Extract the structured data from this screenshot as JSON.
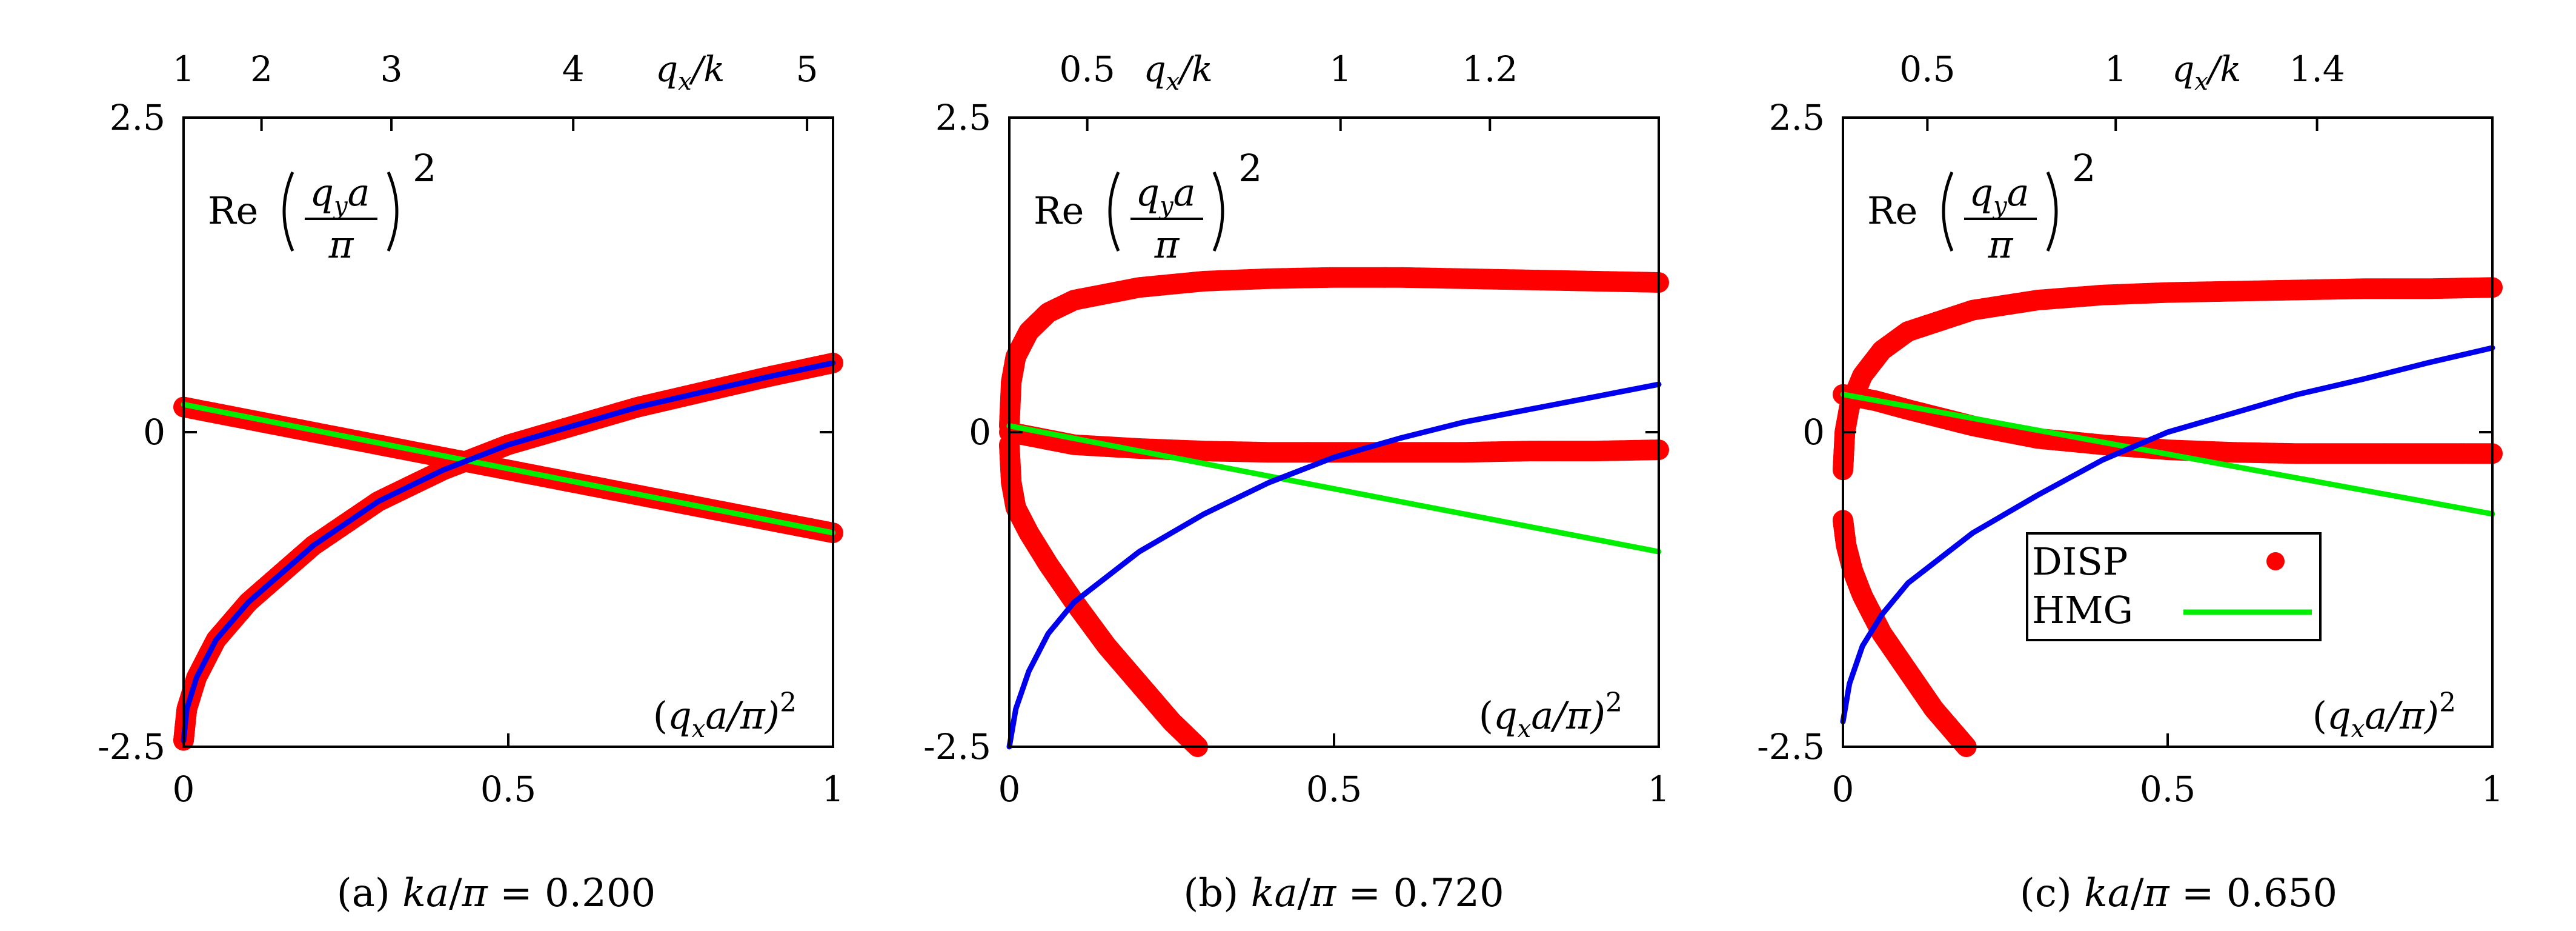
{
  "figure": {
    "colors": {
      "disp": "#ff0000",
      "hmg": "#00ee00",
      "blue": "#0000ee",
      "frame": "#000000"
    },
    "panels": [
      {
        "id": "a",
        "caption": {
          "prefix": "(a) ",
          "ka": "ka",
          "div": "/",
          "pi": "π",
          "eq": " = ",
          "value": "0.200"
        },
        "ylabel": {
          "re": "Re",
          "qy": "q",
          "sub": "y",
          "a": "a",
          "pi": "π",
          "exp": "2"
        },
        "xlabel": {
          "open": "(",
          "qx": "q",
          "sub": "x",
          "rest": "a/π)",
          "exp": "2"
        },
        "toplabel": {
          "q": "q",
          "sub": "x",
          "rest": "/k"
        }
      },
      {
        "id": "b",
        "caption": {
          "prefix": "(b) ",
          "ka": "ka",
          "div": "/",
          "pi": "π",
          "eq": " = ",
          "value": "0.720"
        },
        "ylabel": {
          "re": "Re",
          "qy": "q",
          "sub": "y",
          "a": "a",
          "pi": "π",
          "exp": "2"
        },
        "xlabel": {
          "open": "(",
          "qx": "q",
          "sub": "x",
          "rest": "a/π)",
          "exp": "2"
        },
        "toplabel": {
          "q": "q",
          "sub": "x",
          "rest": "/k"
        }
      },
      {
        "id": "c",
        "caption": {
          "prefix": "(c) ",
          "ka": "ka",
          "div": "/",
          "pi": "π",
          "eq": " = ",
          "value": "0.650"
        },
        "ylabel": {
          "re": "Re",
          "qy": "q",
          "sub": "y",
          "a": "a",
          "pi": "π",
          "exp": "2"
        },
        "xlabel": {
          "open": "(",
          "qx": "q",
          "sub": "x",
          "rest": "a/π)",
          "exp": "2"
        },
        "toplabel": {
          "q": "q",
          "sub": "x",
          "rest": "/k"
        },
        "legend": {
          "disp": "DISP",
          "hmg": "HMG"
        }
      }
    ]
  },
  "chart_data": [
    {
      "type": "line",
      "panel": "a",
      "xlim": [
        0,
        1
      ],
      "ylim": [
        -2.5,
        2.5
      ],
      "x_ticks": [
        "0",
        "0.5",
        "1"
      ],
      "y_ticks": [
        "-2.5",
        "0",
        "2.5"
      ],
      "top_axis": {
        "ticks": [
          "1",
          "2",
          "3",
          "4",
          "5"
        ],
        "tick_x": [
          0.0,
          0.12,
          0.32,
          0.6,
          0.96
        ]
      },
      "series": [
        {
          "name": "DISP",
          "style": "points",
          "points": [
            [
              0.0,
              -2.45
            ],
            [
              0.005,
              -2.2
            ],
            [
              0.02,
              -1.95
            ],
            [
              0.05,
              -1.65
            ],
            [
              0.1,
              -1.35
            ],
            [
              0.2,
              -0.9
            ],
            [
              0.3,
              -0.55
            ],
            [
              0.4,
              -0.3
            ],
            [
              0.5,
              -0.1
            ],
            [
              0.6,
              0.05
            ],
            [
              0.7,
              0.2
            ],
            [
              0.8,
              0.32
            ],
            [
              0.9,
              0.44
            ],
            [
              1.0,
              0.55
            ]
          ]
        },
        {
          "name": "DISP",
          "style": "points",
          "points": [
            [
              0.0,
              0.2
            ],
            [
              0.1,
              0.1
            ],
            [
              0.2,
              -0.0
            ],
            [
              0.3,
              -0.1
            ],
            [
              0.4,
              -0.2
            ],
            [
              0.5,
              -0.3
            ],
            [
              0.6,
              -0.4
            ],
            [
              0.7,
              -0.5
            ],
            [
              0.8,
              -0.6
            ],
            [
              0.9,
              -0.7
            ],
            [
              1.0,
              -0.8
            ]
          ]
        },
        {
          "name": "HMG",
          "style": "line",
          "points": [
            [
              0.0,
              0.22
            ],
            [
              1.0,
              -0.8
            ]
          ]
        },
        {
          "style": "line",
          "color": "blue",
          "points": [
            [
              0.0,
              -2.45
            ],
            [
              0.005,
              -2.2
            ],
            [
              0.02,
              -1.95
            ],
            [
              0.05,
              -1.65
            ],
            [
              0.1,
              -1.35
            ],
            [
              0.2,
              -0.9
            ],
            [
              0.3,
              -0.55
            ],
            [
              0.4,
              -0.3
            ],
            [
              0.5,
              -0.1
            ],
            [
              0.6,
              0.05
            ],
            [
              0.7,
              0.2
            ],
            [
              0.8,
              0.32
            ],
            [
              0.9,
              0.44
            ],
            [
              1.0,
              0.55
            ]
          ]
        }
      ]
    },
    {
      "type": "line",
      "panel": "b",
      "xlim": [
        0,
        1
      ],
      "ylim": [
        -2.5,
        2.5
      ],
      "x_ticks": [
        "0",
        "0.5",
        "1"
      ],
      "y_ticks": [
        "-2.5",
        "0",
        "2.5"
      ],
      "top_axis": {
        "ticks": [
          "0.5",
          "1",
          "1.2"
        ],
        "tick_x": [
          0.12,
          0.51,
          0.74
        ]
      },
      "series": [
        {
          "name": "DISP",
          "style": "points",
          "points": [
            [
              0.0,
              0.05
            ],
            [
              0.003,
              0.4
            ],
            [
              0.01,
              0.6
            ],
            [
              0.03,
              0.8
            ],
            [
              0.06,
              0.95
            ],
            [
              0.1,
              1.05
            ],
            [
              0.2,
              1.15
            ],
            [
              0.3,
              1.2
            ],
            [
              0.4,
              1.22
            ],
            [
              0.5,
              1.23
            ],
            [
              0.6,
              1.23
            ],
            [
              0.7,
              1.22
            ],
            [
              0.8,
              1.21
            ],
            [
              0.9,
              1.2
            ],
            [
              1.0,
              1.19
            ]
          ]
        },
        {
          "name": "DISP",
          "style": "points",
          "points": [
            [
              0.0,
              0.0
            ],
            [
              0.05,
              -0.05
            ],
            [
              0.1,
              -0.1
            ],
            [
              0.2,
              -0.13
            ],
            [
              0.3,
              -0.15
            ],
            [
              0.4,
              -0.16
            ],
            [
              0.5,
              -0.16
            ],
            [
              0.6,
              -0.16
            ],
            [
              0.7,
              -0.16
            ],
            [
              0.8,
              -0.15
            ],
            [
              0.9,
              -0.15
            ],
            [
              1.0,
              -0.14
            ]
          ]
        },
        {
          "name": "DISP",
          "style": "points",
          "points": [
            [
              0.0,
              -0.1
            ],
            [
              0.003,
              -0.4
            ],
            [
              0.01,
              -0.6
            ],
            [
              0.03,
              -0.8
            ],
            [
              0.06,
              -1.05
            ],
            [
              0.1,
              -1.35
            ],
            [
              0.15,
              -1.7
            ],
            [
              0.2,
              -2.0
            ],
            [
              0.25,
              -2.3
            ],
            [
              0.29,
              -2.5
            ]
          ]
        },
        {
          "name": "HMG",
          "style": "line",
          "points": [
            [
              0.0,
              0.05
            ],
            [
              1.0,
              -0.95
            ]
          ]
        },
        {
          "style": "line",
          "color": "blue",
          "points": [
            [
              0.0,
              -2.5
            ],
            [
              0.01,
              -2.2
            ],
            [
              0.03,
              -1.9
            ],
            [
              0.06,
              -1.6
            ],
            [
              0.1,
              -1.35
            ],
            [
              0.2,
              -0.95
            ],
            [
              0.3,
              -0.65
            ],
            [
              0.4,
              -0.4
            ],
            [
              0.5,
              -0.2
            ],
            [
              0.6,
              -0.05
            ],
            [
              0.7,
              0.08
            ],
            [
              0.8,
              0.18
            ],
            [
              0.9,
              0.28
            ],
            [
              1.0,
              0.38
            ]
          ]
        }
      ]
    },
    {
      "type": "line",
      "panel": "c",
      "xlim": [
        0,
        1
      ],
      "ylim": [
        -2.5,
        2.5
      ],
      "x_ticks": [
        "0",
        "0.5",
        "1"
      ],
      "y_ticks": [
        "-2.5",
        "0",
        "2.5"
      ],
      "top_axis": {
        "ticks": [
          "0.5",
          "1",
          "1.4"
        ],
        "tick_x": [
          0.13,
          0.42,
          0.73
        ]
      },
      "series": [
        {
          "name": "DISP",
          "style": "points",
          "points": [
            [
              0.0,
              -0.3
            ],
            [
              0.003,
              0.0
            ],
            [
              0.01,
              0.2
            ],
            [
              0.03,
              0.45
            ],
            [
              0.06,
              0.65
            ],
            [
              0.1,
              0.8
            ],
            [
              0.2,
              0.97
            ],
            [
              0.3,
              1.05
            ],
            [
              0.4,
              1.09
            ],
            [
              0.5,
              1.11
            ],
            [
              0.6,
              1.12
            ],
            [
              0.7,
              1.13
            ],
            [
              0.8,
              1.14
            ],
            [
              0.9,
              1.14
            ],
            [
              1.0,
              1.15
            ]
          ]
        },
        {
          "name": "DISP",
          "style": "points",
          "points": [
            [
              0.0,
              0.3
            ],
            [
              0.05,
              0.25
            ],
            [
              0.1,
              0.18
            ],
            [
              0.2,
              0.05
            ],
            [
              0.3,
              -0.05
            ],
            [
              0.4,
              -0.1
            ],
            [
              0.5,
              -0.14
            ],
            [
              0.6,
              -0.16
            ],
            [
              0.7,
              -0.17
            ],
            [
              0.8,
              -0.17
            ],
            [
              0.9,
              -0.17
            ],
            [
              1.0,
              -0.17
            ]
          ]
        },
        {
          "name": "DISP",
          "style": "points",
          "points": [
            [
              0.0,
              -0.7
            ],
            [
              0.005,
              -0.9
            ],
            [
              0.015,
              -1.1
            ],
            [
              0.03,
              -1.3
            ],
            [
              0.06,
              -1.6
            ],
            [
              0.1,
              -1.9
            ],
            [
              0.14,
              -2.2
            ],
            [
              0.19,
              -2.5
            ]
          ]
        },
        {
          "name": "HMG",
          "style": "line",
          "points": [
            [
              0.0,
              0.3
            ],
            [
              1.0,
              -0.65
            ]
          ]
        },
        {
          "style": "line",
          "color": "blue",
          "points": [
            [
              0.0,
              -2.3
            ],
            [
              0.01,
              -2.0
            ],
            [
              0.03,
              -1.7
            ],
            [
              0.06,
              -1.45
            ],
            [
              0.1,
              -1.2
            ],
            [
              0.2,
              -0.8
            ],
            [
              0.3,
              -0.5
            ],
            [
              0.4,
              -0.22
            ],
            [
              0.5,
              0.0
            ],
            [
              0.6,
              0.15
            ],
            [
              0.7,
              0.3
            ],
            [
              0.8,
              0.42
            ],
            [
              0.9,
              0.55
            ],
            [
              1.0,
              0.67
            ]
          ]
        }
      ]
    }
  ]
}
